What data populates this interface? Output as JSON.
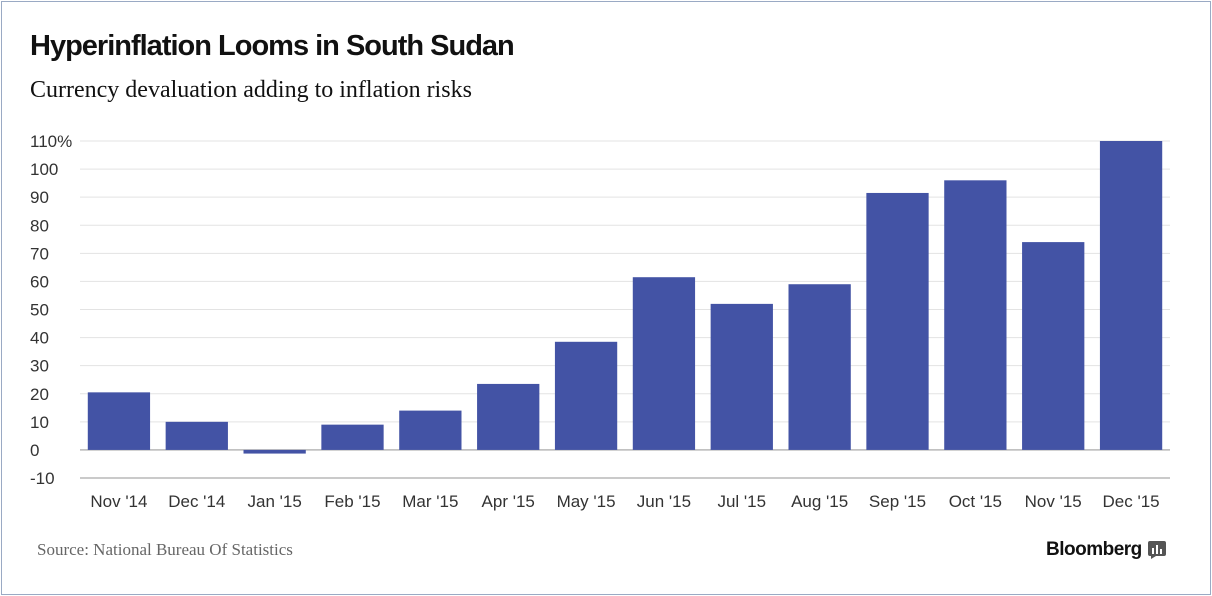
{
  "title": "Hyperinflation Looms in South Sudan",
  "subtitle": "Currency devaluation adding to inflation risks",
  "source": "Source: National Bureau Of Statistics",
  "brand": {
    "name": "Bloomberg",
    "icon": "bloomberg-chart-icon"
  },
  "colors": {
    "bar": "#4353a5",
    "grid": "#e3e3e3",
    "axis": "#b8b8b8",
    "text": "#333333"
  },
  "chart_data": {
    "type": "bar",
    "categories": [
      "Nov '14",
      "Dec '14",
      "Jan '15",
      "Feb '15",
      "Mar '15",
      "Apr '15",
      "May '15",
      "Jun '15",
      "Jul '15",
      "Aug '15",
      "Sep '15",
      "Oct '15",
      "Nov '15",
      "Dec '15"
    ],
    "series": [
      {
        "values": [
          20.5,
          10,
          -1.3,
          9,
          14,
          23.5,
          38.5,
          61.5,
          52,
          59,
          91.5,
          96,
          74,
          110
        ]
      }
    ],
    "xlabel": "",
    "ylabel": "",
    "ylim": [
      -10,
      110
    ],
    "yticks": [
      -10,
      0,
      10,
      20,
      30,
      40,
      50,
      60,
      70,
      80,
      90,
      100,
      110
    ],
    "ytick_labels": [
      "-10",
      "0",
      "10",
      "20",
      "30",
      "40",
      "50",
      "60",
      "70",
      "80",
      "90",
      "100",
      "110%"
    ],
    "grid": true,
    "legend": "none"
  }
}
